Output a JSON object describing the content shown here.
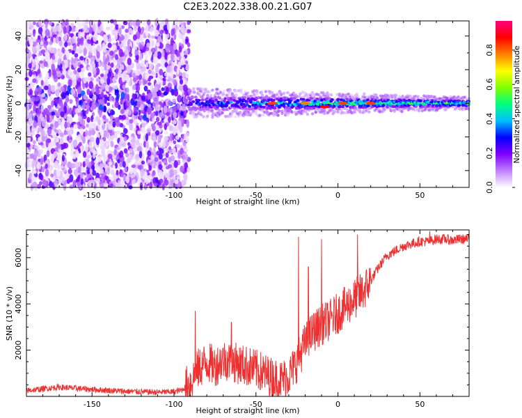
{
  "figure_title": "C2E3.2022.338.00.21.G07",
  "chart_data": [
    {
      "type": "heatmap",
      "xlabel": "Height of straight line (km)",
      "ylabel": "Frequency (Hz)",
      "xlim": [
        -190,
        80
      ],
      "ylim": [
        -50,
        49
      ],
      "xticks": [
        -150,
        -100,
        -50,
        0,
        50
      ],
      "yticks": [
        -40,
        -20,
        0,
        20,
        40
      ],
      "colorbar": {
        "label": "Normalized spectral amplitude",
        "range": [
          0,
          0.97
        ],
        "ticks": [
          0.0,
          0.2,
          0.4,
          0.6,
          0.8
        ],
        "tick_labels": [
          "0.0",
          "0.2",
          "0.4",
          "0.6",
          "0.8"
        ],
        "colors": [
          "#ffffff",
          "#c080ff",
          "#8000ff",
          "#0000ff",
          "#00c0ff",
          "#00ff80",
          "#80ff00",
          "#ffff00",
          "#ff8000",
          "#ff0000",
          "#ff0080"
        ]
      },
      "regions": [
        {
          "x_range": [
            -190,
            -91
          ],
          "freq_range": [
            -50,
            49
          ],
          "amplitude": [
            0.02,
            0.25
          ],
          "description": "broadband noise"
        },
        {
          "x_range": [
            -91,
            80
          ],
          "center_freq": 0,
          "half_width_hz": [
            5,
            2
          ],
          "amplitude": [
            0.2,
            0.9
          ]
        }
      ],
      "peaks": [
        {
          "x": -40,
          "freq": 0,
          "amplitude": 0.85
        },
        {
          "x": -20,
          "freq": 0,
          "amplitude": 0.8
        },
        {
          "x": -8,
          "freq": -2,
          "amplitude": 0.9
        },
        {
          "x": 3,
          "freq": 0,
          "amplitude": 0.85
        },
        {
          "x": 20,
          "freq": 0,
          "amplitude": 0.85
        }
      ]
    },
    {
      "type": "line",
      "xlabel": "Height of straight line (km)",
      "ylabel": "SNR (10 * v/v)",
      "xlim": [
        -190,
        80
      ],
      "ylim": [
        0,
        7200
      ],
      "xticks": [
        -150,
        -100,
        -50,
        0,
        50
      ],
      "yticks": [
        2000,
        4000,
        6000
      ],
      "line_color": "#f03030",
      "x": [
        -190,
        -170,
        -150,
        -130,
        -110,
        -100,
        -95,
        -90,
        -85,
        -80,
        -75,
        -70,
        -65,
        -60,
        -55,
        -50,
        -45,
        -40,
        -35,
        -30,
        -25,
        -20,
        -15,
        -10,
        -5,
        0,
        5,
        10,
        15,
        20,
        25,
        30,
        35,
        40,
        45,
        50,
        55,
        60,
        65,
        70,
        75,
        80
      ],
      "y": [
        250,
        400,
        300,
        220,
        180,
        200,
        280,
        600,
        1200,
        1500,
        1300,
        1600,
        1500,
        1400,
        1300,
        1150,
        1000,
        800,
        700,
        900,
        1500,
        2300,
        2800,
        3100,
        3300,
        3600,
        3900,
        4200,
        4500,
        5000,
        5600,
        6100,
        6300,
        6500,
        6600,
        6700,
        6700,
        6800,
        6800,
        6750,
        6800,
        6800
      ],
      "spikes": [
        {
          "x": -87,
          "y": 3700
        },
        {
          "x": -65,
          "y": 3200
        },
        {
          "x": -24,
          "y": 6900
        },
        {
          "x": -18,
          "y": 5600
        },
        {
          "x": -10,
          "y": 6800
        },
        {
          "x": 12,
          "y": 7000
        },
        {
          "x": 56,
          "y": 7150
        }
      ]
    }
  ]
}
